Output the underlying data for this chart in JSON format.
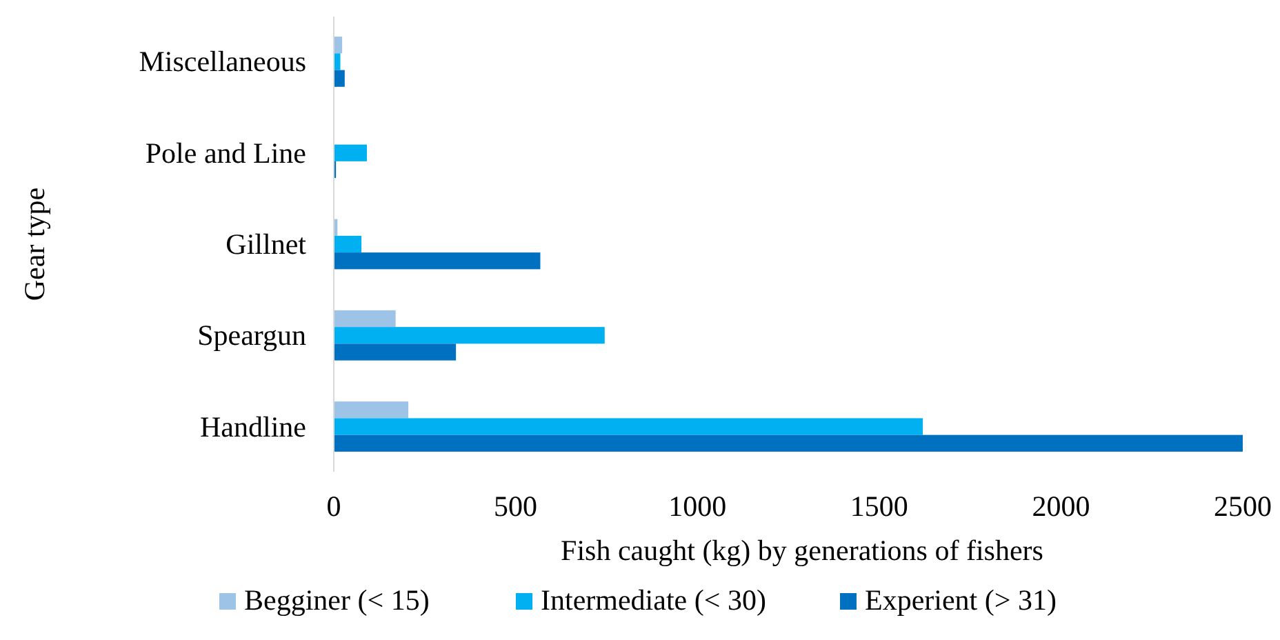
{
  "chart_data": {
    "type": "bar",
    "orientation": "horizontal",
    "xlabel": "Fish caught (kg) by generations  of fishers",
    "ylabel": "Gear type",
    "categories": [
      "Miscellaneous",
      "Pole and Line",
      "Gillnet",
      "Speargun",
      "Handline"
    ],
    "series": [
      {
        "name": "Begginer (< 15)",
        "color": "#9dc3e6",
        "values": [
          23,
          0,
          10,
          170,
          205
        ]
      },
      {
        "name": "Intermediate (< 30)",
        "color": "#00b0f0",
        "values": [
          18,
          91,
          76,
          745,
          1620
        ]
      },
      {
        "name": "Experient (> 31)",
        "color": "#0070c0",
        "values": [
          30,
          6,
          568,
          336,
          2500
        ]
      }
    ],
    "xlim": [
      0,
      2500
    ],
    "xticks": [
      0,
      500,
      1000,
      1500,
      2000,
      2500
    ],
    "grid": false,
    "legend": "bottom"
  }
}
